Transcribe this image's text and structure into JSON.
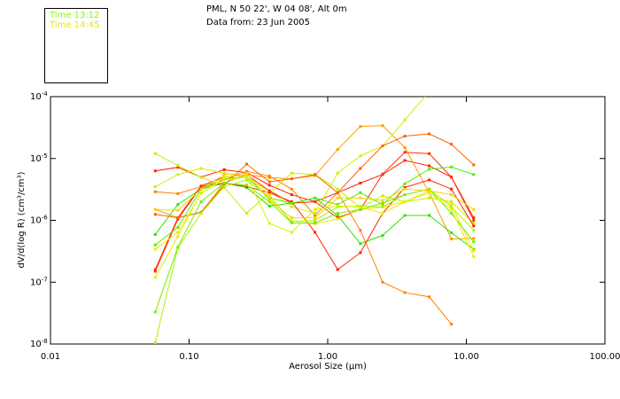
{
  "header": {
    "location": "PML, N 50 22', W 04 08', Alt 0m",
    "date_line": "Data from: 23 Jun 2005"
  },
  "legend": [
    {
      "label": "Time 13:12",
      "color": "#80ff00"
    },
    {
      "label": "Time 14:45",
      "color": "#e8e800"
    }
  ],
  "chart_data": {
    "type": "line",
    "title": "PML, N 50 22', W 04 08', Alt 0m",
    "subtitle": "Data from: 23 Jun 2005",
    "xlabel": "Aerosol Size (μm)",
    "ylabel": "dV/d(log R) (cm³/cm³)",
    "xscale": "log",
    "yscale": "log",
    "xlim": [
      0.01,
      100
    ],
    "ylim": [
      1e-08,
      0.0001
    ],
    "grid": false,
    "legend_position": "top-left, outside",
    "x_ticks": [
      "0.01",
      "0.10",
      "1.00",
      "10.00",
      "100.00"
    ],
    "y_ticks": [
      {
        "base": "10",
        "exp": "-4"
      },
      {
        "base": "10",
        "exp": "-5"
      },
      {
        "base": "10",
        "exp": "-6"
      },
      {
        "base": "10",
        "exp": "-7"
      },
      {
        "base": "10",
        "exp": "-8"
      }
    ],
    "x": [
      0.057,
      0.083,
      0.122,
      0.179,
      0.26,
      0.38,
      0.55,
      0.81,
      1.18,
      1.72,
      2.49,
      3.6,
      5.4,
      7.8,
      11.3
    ],
    "series": [
      {
        "color": "#ff2000",
        "values": [
          6.3e-06,
          7.2e-06,
          5e-06,
          6.6e-06,
          5.9e-06,
          3.7e-06,
          2.6e-06,
          2e-06,
          2.8e-06,
          4e-06,
          5.5e-06,
          9.3e-06,
          7.6e-06,
          5e-06,
          1.1e-06
        ]
      },
      {
        "color": "#ff9a00",
        "values": [
          1.5e-06,
          1.1e-06,
          1.35e-06,
          4e-06,
          5.5e-06,
          4.9e-06,
          4.7e-06,
          5.3e-06,
          1.4e-05,
          3.3e-05,
          3.4e-05,
          1.5e-05,
          2.8e-06,
          5e-07,
          5.1e-07
        ]
      },
      {
        "color": "#ff8000",
        "values": [
          2.9e-06,
          2.7e-06,
          3.5e-06,
          4.5e-06,
          6.2e-06,
          5.2e-06,
          3.2e-06,
          1.2e-06,
          2.8e-06,
          6.9e-07,
          1e-07,
          6.8e-08,
          5.8e-08,
          2.1e-08,
          null
        ]
      },
      {
        "color": "#d0f000",
        "values": [
          3.5e-06,
          5.5e-06,
          6.9e-06,
          5.8e-06,
          4.9e-06,
          3e-06,
          1.65e-06,
          1.3e-06,
          5.8e-06,
          1.1e-05,
          1.6e-05,
          4.2e-05,
          0.00012,
          null,
          null
        ]
      },
      {
        "color": "#c0f000",
        "values": [
          1.2e-05,
          7.7e-06,
          5e-06,
          3.4e-06,
          1.3e-06,
          2.8e-06,
          5.8e-06,
          5.5e-06,
          3.2e-06,
          1.6e-06,
          2.5e-06,
          2e-06,
          2.3e-06,
          2e-06,
          9e-07
        ]
      },
      {
        "color": "#30e000",
        "values": [
          5.9e-07,
          1.8e-06,
          3.2e-06,
          4e-06,
          3.4e-06,
          1.7e-06,
          1.9e-06,
          2.3e-06,
          1.2e-06,
          4.2e-07,
          5.7e-07,
          1.2e-06,
          1.2e-06,
          6.3e-07,
          3.4e-07
        ]
      },
      {
        "color": "#ff2000",
        "values": [
          1.5e-07,
          1.05e-06,
          3.5e-06,
          4e-06,
          3.5e-06,
          2.8e-06,
          2e-06,
          6.4e-07,
          1.6e-07,
          3e-07,
          1.3e-06,
          3.4e-06,
          4.5e-06,
          3.2e-06,
          8.1e-07
        ]
      },
      {
        "color": "#ff3000",
        "values": [
          1.6e-07,
          1.1e-06,
          3.6e-06,
          5e-06,
          5.5e-06,
          3e-06,
          1.9e-06,
          2e-06,
          1.1e-06,
          1.5e-06,
          5.6e-06,
          1.26e-05,
          1.2e-05,
          5e-06,
          1e-06
        ]
      },
      {
        "color": "#ff6000",
        "values": [
          1.25e-06,
          1.1e-06,
          1.35e-06,
          3.7e-06,
          8.1e-06,
          4.2e-06,
          4.7e-06,
          5.5e-06,
          2.8e-06,
          6.9e-06,
          1.6e-05,
          2.3e-05,
          2.5e-05,
          1.7e-05,
          7.9e-06
        ]
      },
      {
        "color": "#50f000",
        "values": [
          4e-07,
          7.7e-07,
          3.2e-06,
          4.7e-06,
          5e-06,
          2.3e-06,
          1.9e-06,
          2.3e-06,
          1.8e-06,
          2.8e-06,
          1.8e-06,
          3.9e-06,
          6.7e-06,
          7.3e-06,
          5.5e-06
        ]
      },
      {
        "color": "#ffe000",
        "values": [
          3.4e-07,
          6.4e-07,
          2.7e-06,
          5e-06,
          5.5e-06,
          2.6e-06,
          9.1e-07,
          8.8e-07,
          1.05e-06,
          1.5e-06,
          1.65e-06,
          2e-06,
          3e-06,
          1.8e-06,
          3.2e-07
        ]
      },
      {
        "color": "#b0f000",
        "values": [
          1.05e-08,
          3.6e-07,
          1.3e-06,
          3.5e-06,
          4.5e-06,
          2.3e-06,
          9.6e-07,
          1e-06,
          1.65e-06,
          1.7e-06,
          1.65e-06,
          2.6e-06,
          3.2e-06,
          1.65e-06,
          6.9e-07
        ]
      },
      {
        "color": "#70f000",
        "values": [
          3.3e-08,
          3.7e-07,
          2e-06,
          4e-06,
          3.7e-06,
          2e-06,
          9.1e-07,
          9.1e-07,
          1.3e-06,
          1.5e-06,
          1.9e-06,
          2.6e-06,
          3.2e-06,
          1.3e-06,
          4.5e-07
        ]
      },
      {
        "color": "#ffd000",
        "values": [
          1.5e-06,
          1.45e-06,
          3.2e-06,
          5.5e-06,
          5.8e-06,
          2.1e-06,
          1.1e-06,
          1.1e-06,
          2.3e-06,
          2.3e-06,
          2.1e-06,
          3.2e-06,
          3e-06,
          2.6e-06,
          1.5e-06
        ]
      },
      {
        "color": "#e0f000",
        "values": [
          1.2e-07,
          5.5e-07,
          2.8e-06,
          4.5e-06,
          5e-06,
          8.9e-07,
          6.4e-07,
          1.5e-06,
          1.7e-06,
          1.65e-06,
          1.3e-06,
          2e-06,
          2.8e-06,
          1.5e-06,
          2.6e-07
        ]
      }
    ]
  }
}
